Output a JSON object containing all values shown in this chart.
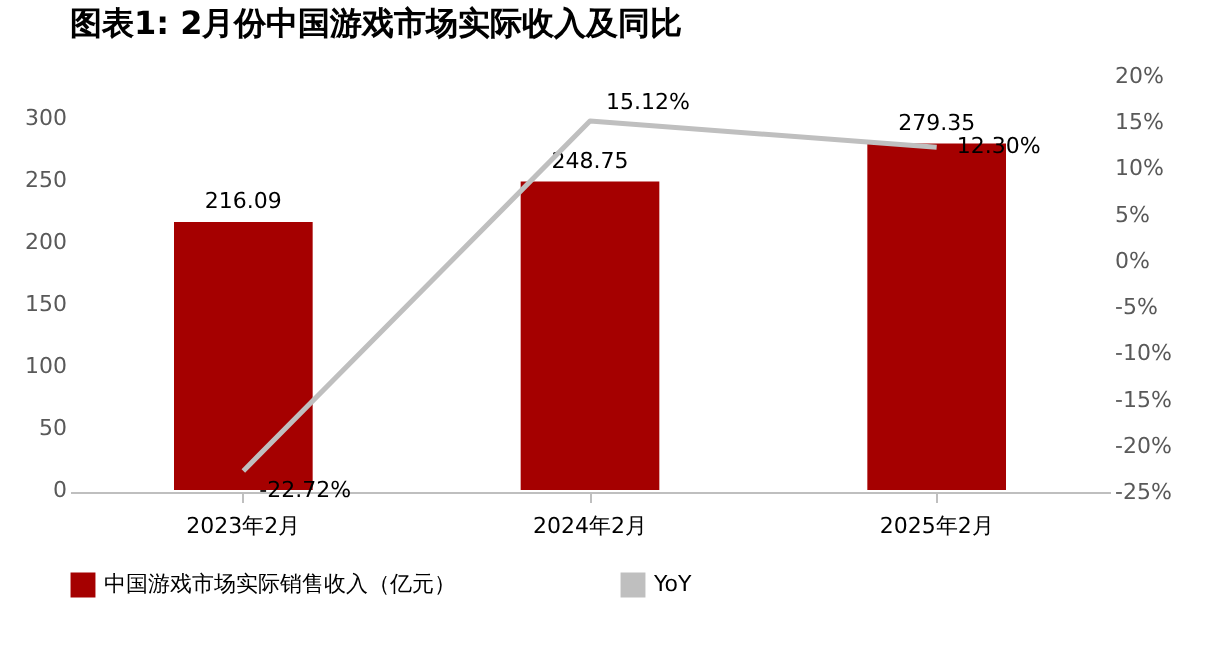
{
  "chart_data": {
    "type": "bar",
    "title": "图表1:   2月份中国游戏市场实际收入及同比",
    "categories": [
      "2023年2月",
      "2024年2月",
      "2025年2月"
    ],
    "series": [
      {
        "name": "中国游戏市场实际销售收入（亿元）",
        "type": "bar",
        "color": "#a50000",
        "values": [
          216.09,
          248.75,
          279.35
        ]
      },
      {
        "name": "YoY",
        "type": "line",
        "axis": "y2",
        "color": "#bfbfbf",
        "values": [
          -22.72,
          15.12,
          12.3
        ],
        "value_labels": [
          "-22.72%",
          "15.12%",
          "12.30%"
        ]
      }
    ],
    "data_labels": true,
    "ylim": [
      0,
      300
    ],
    "yticks": [
      0,
      50,
      100,
      150,
      200,
      250,
      300
    ],
    "y2lim": [
      -25,
      20
    ],
    "y2ticks": [
      {
        "value": -25,
        "label": "-25%"
      },
      {
        "value": -20,
        "label": "-20%"
      },
      {
        "value": -15,
        "label": "-15%"
      },
      {
        "value": -10,
        "label": "-10%"
      },
      {
        "value": -5,
        "label": "-5%"
      },
      {
        "value": 0,
        "label": "0%"
      },
      {
        "value": 5,
        "label": "5%"
      },
      {
        "value": 10,
        "label": "10%"
      },
      {
        "value": 15,
        "label": "15%"
      },
      {
        "value": 20,
        "label": "20%"
      }
    ],
    "grid": false,
    "legend": "bottom",
    "marker": "none",
    "line_style": "solid"
  }
}
